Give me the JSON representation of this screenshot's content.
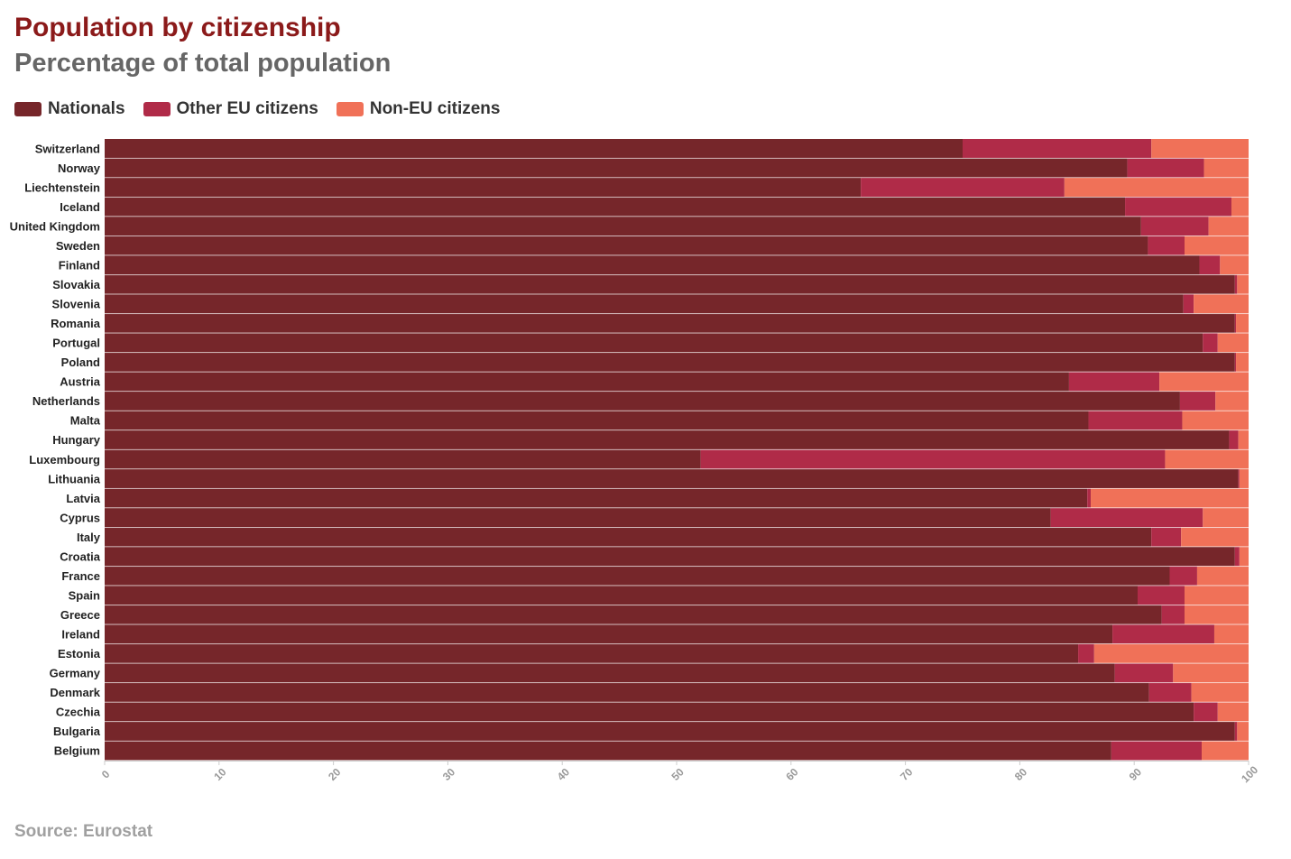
{
  "colors": {
    "nationals": "#76262a",
    "other_eu": "#b02b48",
    "non_eu": "#f07158",
    "title": "#8b1a1a",
    "subtitle": "#666666",
    "axis_text": "#999999"
  },
  "legend": [
    {
      "label": "Nationals",
      "color": "#76262a"
    },
    {
      "label": "Other EU citizens",
      "color": "#b02b48"
    },
    {
      "label": "Non-EU citizens",
      "color": "#f07158"
    }
  ],
  "source": "Source: Eurostat",
  "chart_data": {
    "type": "bar",
    "orientation": "horizontal",
    "stacked": true,
    "title": "Population by citizenship",
    "subtitle": "Percentage of total population",
    "xlabel": "",
    "ylabel": "",
    "xlim": [
      0,
      100
    ],
    "xticks": [
      0,
      10,
      20,
      30,
      40,
      50,
      60,
      70,
      80,
      90,
      100
    ],
    "grid": false,
    "legend_position": "top-left",
    "categories": [
      "Switzerland",
      "Norway",
      "Liechtenstein",
      "Iceland",
      "United Kingdom",
      "Sweden",
      "Finland",
      "Slovakia",
      "Slovenia",
      "Romania",
      "Portugal",
      "Poland",
      "Austria",
      "Netherlands",
      "Malta",
      "Hungary",
      "Luxembourg",
      "Lithuania",
      "Latvia",
      "Cyprus",
      "Italy",
      "Croatia",
      "France",
      "Spain",
      "Greece",
      "Ireland",
      "Estonia",
      "Germany",
      "Denmark",
      "Czechia",
      "Bulgaria",
      "Belgium"
    ],
    "series": [
      {
        "name": "Nationals",
        "values": [
          75.0,
          89.4,
          66.1,
          89.2,
          90.6,
          91.2,
          95.7,
          98.8,
          94.3,
          98.8,
          96.0,
          98.8,
          84.3,
          94.0,
          86.0,
          98.3,
          52.1,
          99.1,
          85.9,
          82.7,
          91.5,
          98.8,
          93.1,
          90.3,
          92.4,
          88.1,
          85.1,
          88.3,
          91.3,
          95.2,
          98.8,
          88.0
        ]
      },
      {
        "name": "Other EU citizens",
        "values": [
          16.5,
          6.7,
          17.8,
          9.3,
          5.9,
          3.2,
          1.8,
          0.2,
          0.9,
          0.1,
          1.3,
          0.1,
          7.9,
          3.1,
          8.2,
          0.8,
          40.6,
          0.1,
          0.3,
          13.3,
          2.6,
          0.4,
          2.4,
          4.1,
          2.0,
          8.9,
          1.4,
          5.1,
          3.7,
          2.1,
          0.2,
          7.9
        ]
      },
      {
        "name": "Non-EU citizens",
        "values": [
          8.5,
          3.9,
          16.1,
          1.5,
          3.5,
          5.6,
          2.5,
          1.0,
          4.8,
          1.1,
          2.7,
          1.1,
          7.8,
          2.9,
          5.8,
          0.9,
          7.3,
          0.8,
          13.8,
          4.0,
          5.9,
          0.8,
          4.5,
          5.6,
          5.6,
          3.0,
          13.5,
          6.6,
          5.0,
          2.7,
          1.0,
          4.1
        ]
      }
    ]
  }
}
